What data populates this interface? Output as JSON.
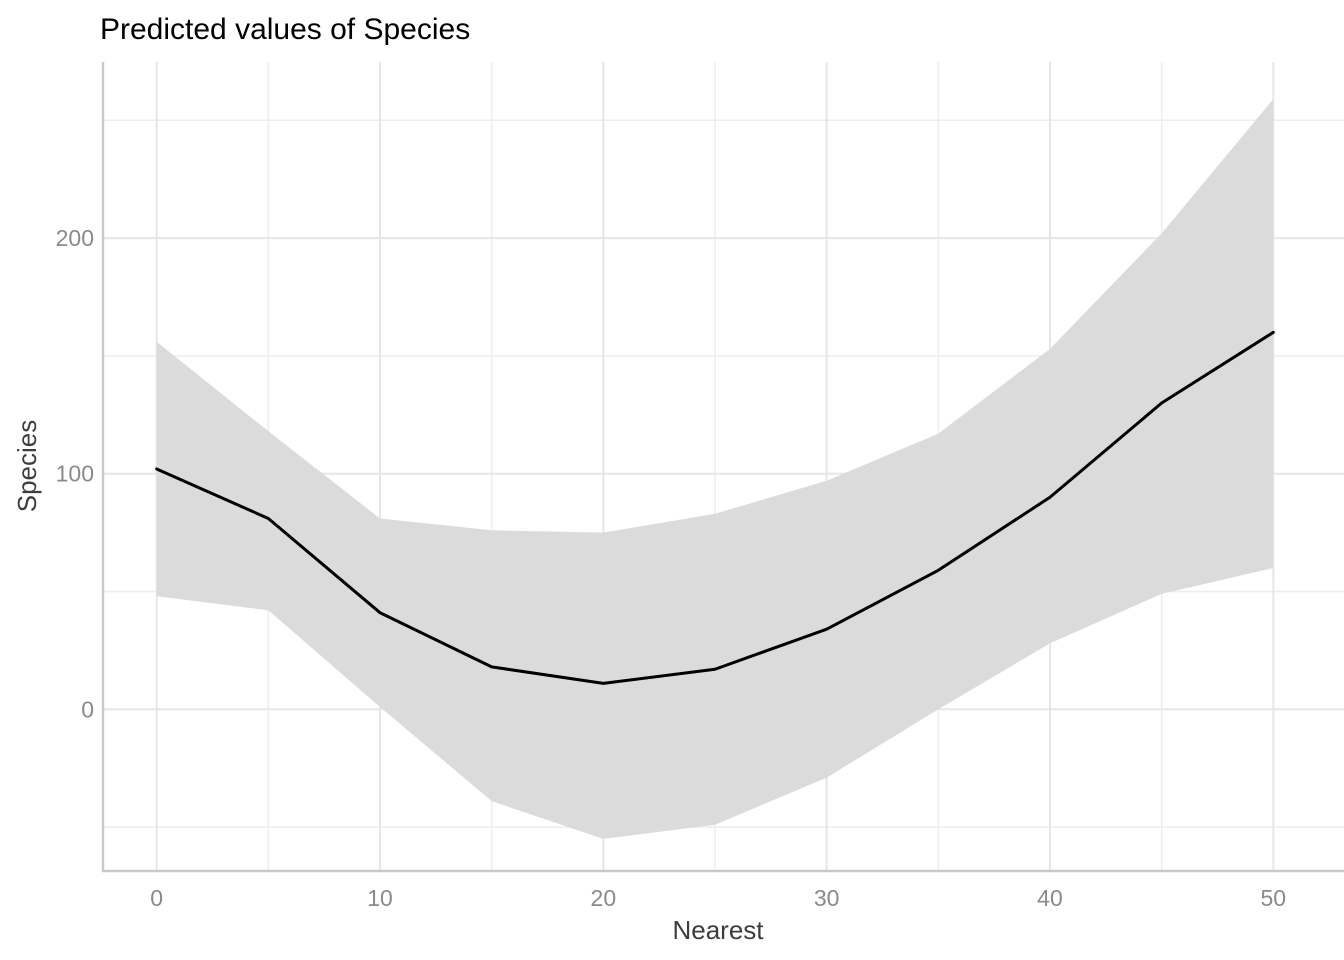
{
  "title": "Predicted values of Species",
  "chart_data": {
    "type": "line",
    "title": "Predicted values of Species",
    "xlabel": "Nearest",
    "ylabel": "Species",
    "x": [
      0,
      5,
      10,
      15,
      20,
      25,
      30,
      35,
      40,
      45,
      50
    ],
    "series": [
      {
        "name": "predicted",
        "values": [
          102,
          81,
          41,
          18,
          11,
          17,
          34,
          59,
          90,
          130,
          160
        ]
      },
      {
        "name": "conf_low",
        "values": [
          48,
          42,
          1,
          -39,
          -55,
          -49,
          -29,
          0,
          28,
          49,
          60
        ]
      },
      {
        "name": "conf_high",
        "values": [
          156,
          118,
          81,
          76,
          75,
          83,
          97,
          117,
          153,
          202,
          259
        ]
      }
    ],
    "x_ticks": [
      0,
      10,
      20,
      30,
      40,
      50
    ],
    "y_ticks": [
      0,
      100,
      200
    ],
    "x_minor": [
      5,
      15,
      25,
      35,
      45
    ],
    "y_minor": [
      -50,
      50,
      150,
      250
    ],
    "xlim": [
      -2.5,
      53.2
    ],
    "ylim": [
      -69,
      275
    ],
    "grid": true,
    "legend": "none",
    "ribbon": true
  },
  "colors": {
    "line": "#000000",
    "ribbon": "#DBDBDB",
    "grid_major": "#E6E6E6",
    "grid_minor": "#EDEDED",
    "axis_line": "#C9C9C9",
    "tick_label": "#8A8A8A",
    "axis_title": "#3D3D3D",
    "title": "#000000",
    "background": "#FFFFFF"
  }
}
